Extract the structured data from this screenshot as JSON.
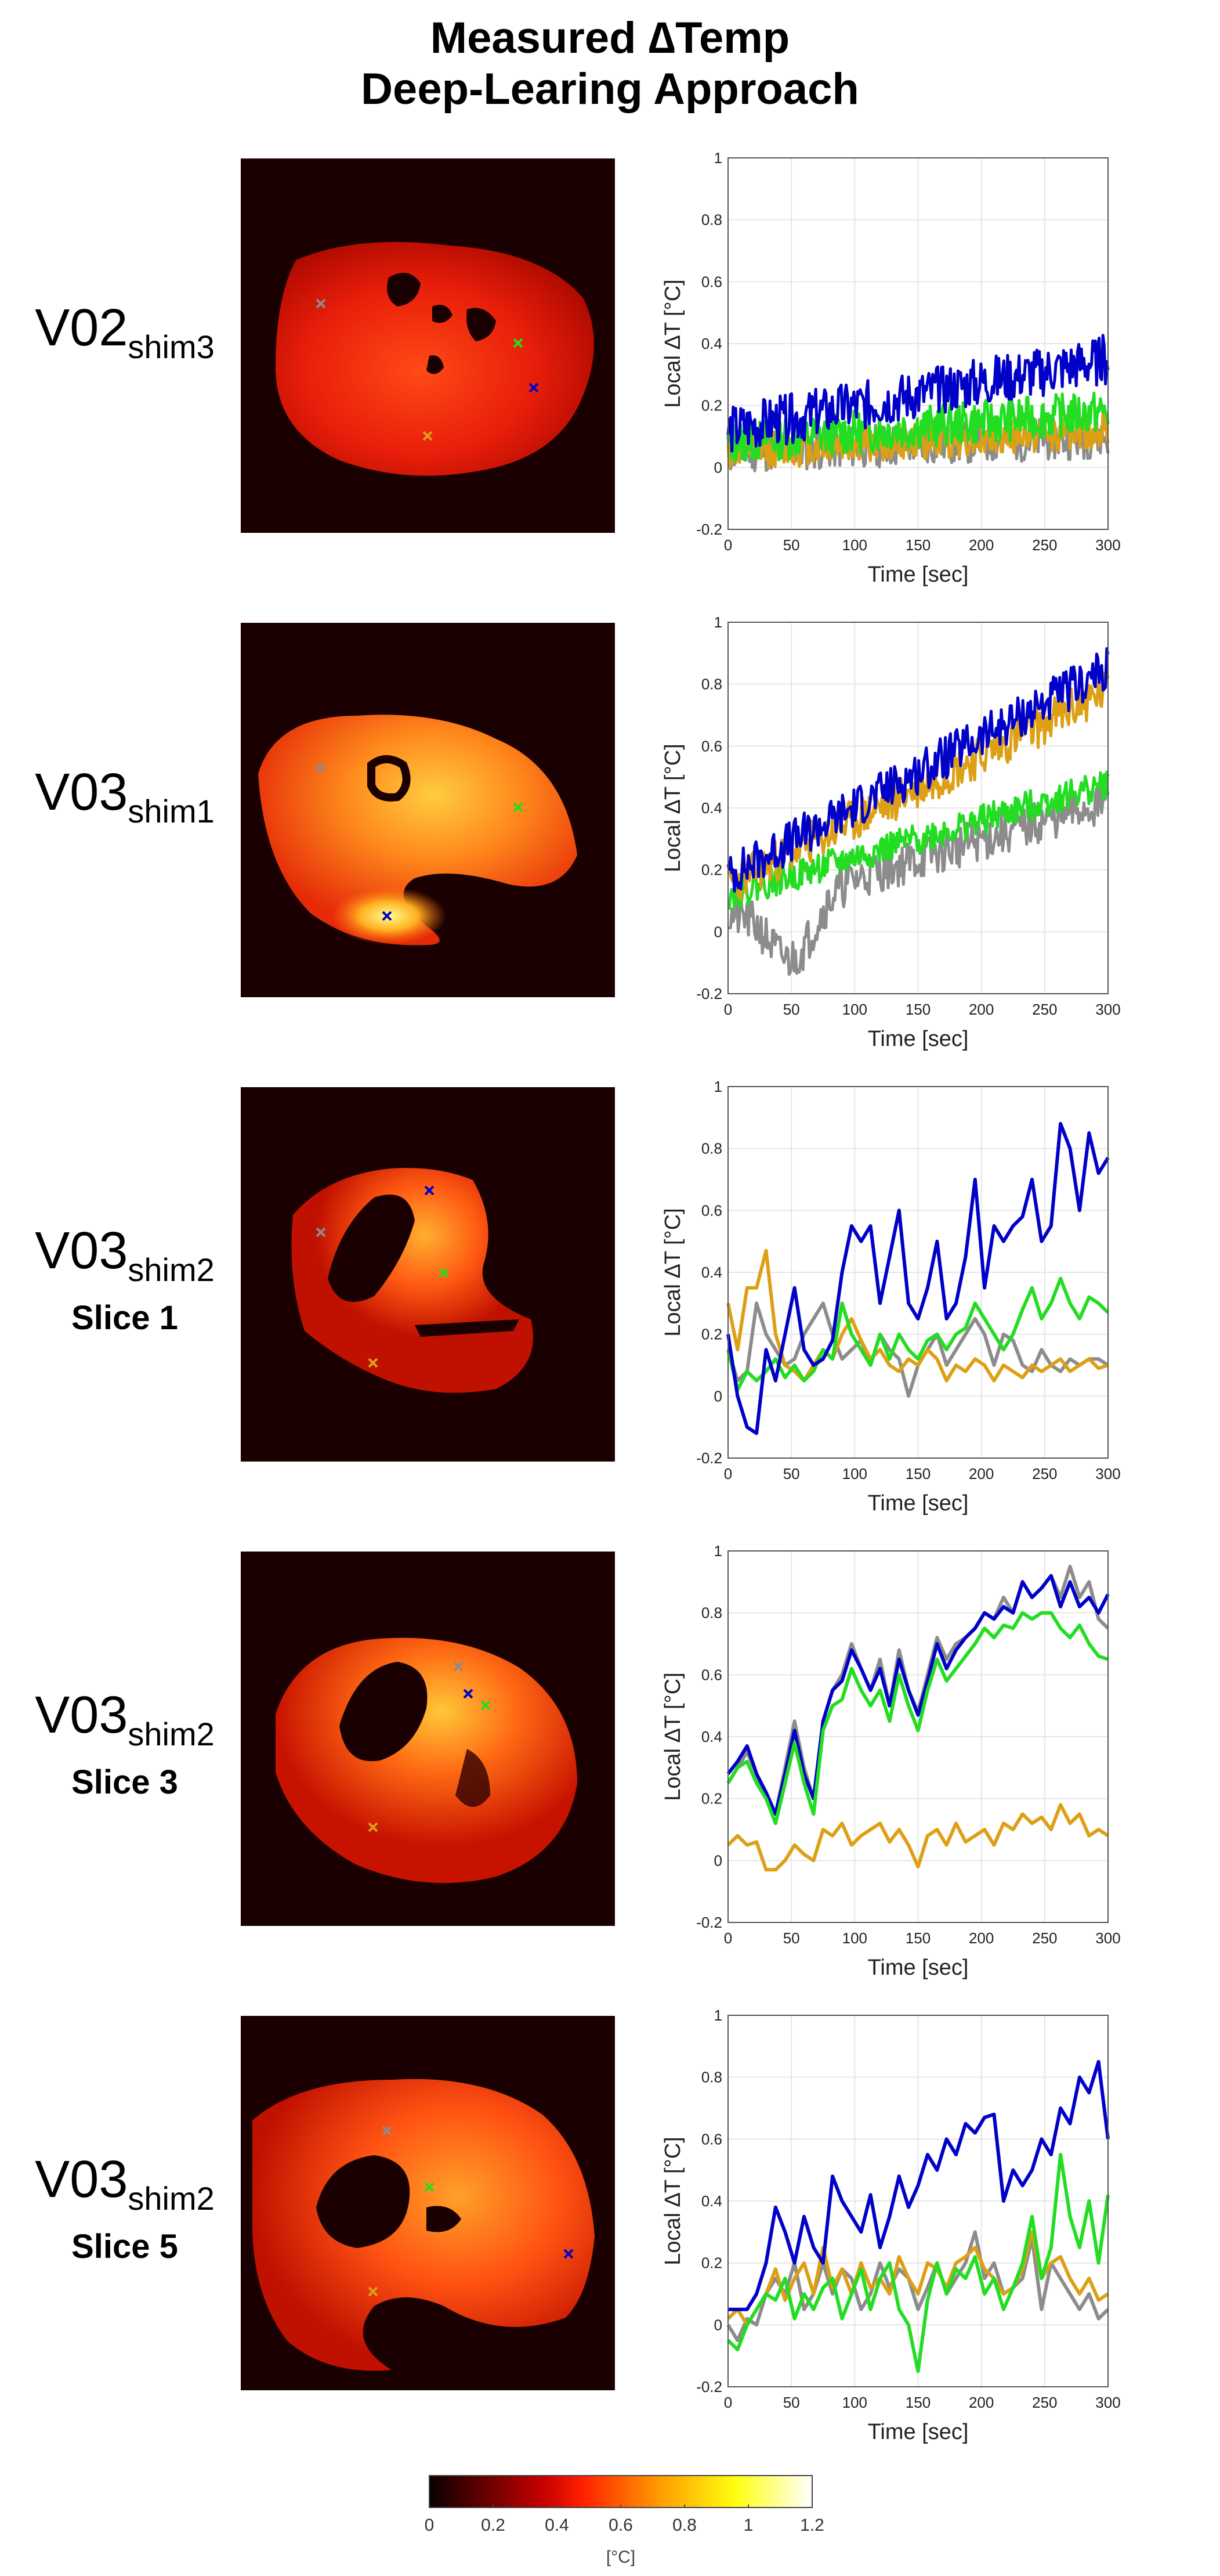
{
  "title": {
    "line1": "Measured ∆Temp",
    "line2": "Deep-Learing Approach"
  },
  "colors": {
    "blue": "#0000c8",
    "green": "#22dd22",
    "gold": "#dda015",
    "gray": "#8c8c8c",
    "bg": "#1a0000"
  },
  "rows": [
    {
      "label_main": "V02",
      "label_sub": "shim3",
      "slice": ""
    },
    {
      "label_main": "V03",
      "label_sub": "shim1",
      "slice": ""
    },
    {
      "label_main": "V03",
      "label_sub": "shim2",
      "slice": "Slice 1"
    },
    {
      "label_main": "V03",
      "label_sub": "shim2",
      "slice": "Slice 3"
    },
    {
      "label_main": "V03",
      "label_sub": "shim2",
      "slice": "Slice 5"
    }
  ],
  "colorbar": {
    "ticks": [
      "0",
      "0.2",
      "0.4",
      "0.6",
      "0.8",
      "1",
      "1.2"
    ],
    "label": "[°C]",
    "range": [
      0,
      1.2
    ]
  },
  "chart_data": [
    {
      "type": "line",
      "row": 0,
      "xlabel": "Time [sec]",
      "ylabel": "Local ∆T [°C]",
      "xlim": [
        0,
        300
      ],
      "ylim": [
        -0.2,
        1
      ],
      "xticks": [
        "0",
        "50",
        "100",
        "150",
        "200",
        "250",
        "300"
      ],
      "yticks": [
        "-0.2",
        "0",
        "0.2",
        "0.4",
        "0.6",
        "0.8",
        "1"
      ],
      "series": [
        {
          "name": "gray",
          "n": 300,
          "seed": 11,
          "start": 0.05,
          "end": 0.1,
          "noise": 0.07
        },
        {
          "name": "gold",
          "n": 300,
          "seed": 12,
          "start": 0.05,
          "end": 0.12,
          "noise": 0.06
        },
        {
          "name": "green",
          "n": 300,
          "seed": 13,
          "start": 0.08,
          "end": 0.18,
          "noise": 0.07
        },
        {
          "name": "blue",
          "n": 300,
          "seed": 14,
          "start": 0.12,
          "end": 0.35,
          "noise": 0.08
        }
      ]
    },
    {
      "type": "line",
      "row": 1,
      "xlabel": "Time [sec]",
      "ylabel": "Local ∆T [°C]",
      "xlim": [
        0,
        300
      ],
      "ylim": [
        -0.2,
        1
      ],
      "xticks": [
        "0",
        "50",
        "100",
        "150",
        "200",
        "250",
        "300"
      ],
      "yticks": [
        "-0.2",
        "0",
        "0.2",
        "0.4",
        "0.6",
        "0.8",
        "1"
      ],
      "series": [
        {
          "name": "gray",
          "n": 300,
          "seed": 21,
          "start": 0.05,
          "end": 0.42,
          "noise": 0.07,
          "dip": [
            50,
            -0.2
          ]
        },
        {
          "name": "green",
          "n": 300,
          "seed": 22,
          "start": 0.12,
          "end": 0.48,
          "noise": 0.05
        },
        {
          "name": "gold",
          "n": 300,
          "seed": 23,
          "start": 0.15,
          "end": 0.78,
          "noise": 0.07
        },
        {
          "name": "blue",
          "n": 300,
          "seed": 24,
          "start": 0.18,
          "end": 0.85,
          "noise": 0.07
        }
      ]
    },
    {
      "type": "line",
      "row": 2,
      "xlabel": "Time [sec]",
      "ylabel": "Local ∆T [°C]",
      "xlim": [
        0,
        300
      ],
      "ylim": [
        -0.2,
        1
      ],
      "xticks": [
        "0",
        "50",
        "100",
        "150",
        "200",
        "250",
        "300"
      ],
      "yticks": [
        "-0.2",
        "0",
        "0.2",
        "0.4",
        "0.6",
        "0.8",
        "1"
      ],
      "series": [
        {
          "name": "gray",
          "values": [
            0.15,
            0.05,
            0.08,
            0.3,
            0.2,
            0.15,
            0.1,
            0.12,
            0.2,
            0.25,
            0.3,
            0.2,
            0.12,
            0.15,
            0.18,
            0.1,
            0.2,
            0.15,
            0.12,
            0.0,
            0.1,
            0.15,
            0.2,
            0.1,
            0.15,
            0.2,
            0.25,
            0.2,
            0.1,
            0.2,
            0.18,
            0.1,
            0.08,
            0.15,
            0.1,
            0.08,
            0.12,
            0.1,
            0.12,
            0.12,
            0.1
          ]
        },
        {
          "name": "gold",
          "values": [
            0.3,
            0.15,
            0.35,
            0.35,
            0.47,
            0.2,
            0.1,
            0.08,
            0.05,
            0.1,
            0.15,
            0.12,
            0.2,
            0.25,
            0.18,
            0.12,
            0.15,
            0.1,
            0.08,
            0.12,
            0.1,
            0.15,
            0.12,
            0.05,
            0.1,
            0.08,
            0.12,
            0.1,
            0.05,
            0.1,
            0.08,
            0.06,
            0.1,
            0.08,
            0.1,
            0.12,
            0.08,
            0.1,
            0.12,
            0.09,
            0.1
          ]
        },
        {
          "name": "green",
          "values": [
            0.15,
            0.02,
            0.08,
            0.05,
            0.08,
            0.12,
            0.06,
            0.1,
            0.05,
            0.08,
            0.15,
            0.12,
            0.3,
            0.2,
            0.15,
            0.1,
            0.2,
            0.12,
            0.2,
            0.15,
            0.12,
            0.18,
            0.2,
            0.15,
            0.2,
            0.22,
            0.3,
            0.25,
            0.2,
            0.15,
            0.2,
            0.28,
            0.35,
            0.25,
            0.3,
            0.38,
            0.3,
            0.25,
            0.32,
            0.3,
            0.27
          ]
        },
        {
          "name": "blue",
          "values": [
            0.2,
            0.0,
            -0.1,
            -0.12,
            0.15,
            0.05,
            0.2,
            0.35,
            0.15,
            0.1,
            0.12,
            0.18,
            0.4,
            0.55,
            0.5,
            0.55,
            0.3,
            0.45,
            0.6,
            0.3,
            0.25,
            0.35,
            0.5,
            0.25,
            0.3,
            0.45,
            0.7,
            0.35,
            0.55,
            0.5,
            0.55,
            0.58,
            0.7,
            0.5,
            0.55,
            0.88,
            0.8,
            0.6,
            0.85,
            0.72,
            0.77
          ]
        }
      ]
    },
    {
      "type": "line",
      "row": 3,
      "xlabel": "Time [sec]",
      "ylabel": "Local ∆T [°C]",
      "xlim": [
        0,
        300
      ],
      "ylim": [
        -0.2,
        1
      ],
      "xticks": [
        "0",
        "50",
        "100",
        "150",
        "200",
        "250",
        "300"
      ],
      "yticks": [
        "-0.2",
        "0",
        "0.2",
        "0.4",
        "0.6",
        "0.8",
        "1"
      ],
      "series": [
        {
          "name": "gold",
          "values": [
            0.05,
            0.08,
            0.05,
            0.06,
            -0.03,
            -0.03,
            0.0,
            0.05,
            0.02,
            0.0,
            0.1,
            0.08,
            0.12,
            0.05,
            0.08,
            0.1,
            0.12,
            0.06,
            0.1,
            0.05,
            -0.02,
            0.08,
            0.1,
            0.05,
            0.12,
            0.06,
            0.08,
            0.1,
            0.05,
            0.12,
            0.1,
            0.15,
            0.12,
            0.14,
            0.1,
            0.18,
            0.12,
            0.15,
            0.08,
            0.1,
            0.08
          ]
        },
        {
          "name": "gray",
          "values": [
            0.25,
            0.3,
            0.35,
            0.28,
            0.2,
            0.15,
            0.3,
            0.45,
            0.3,
            0.2,
            0.45,
            0.55,
            0.6,
            0.7,
            0.62,
            0.55,
            0.65,
            0.5,
            0.68,
            0.55,
            0.48,
            0.6,
            0.72,
            0.65,
            0.7,
            0.72,
            0.75,
            0.8,
            0.78,
            0.85,
            0.8,
            0.9,
            0.85,
            0.88,
            0.92,
            0.85,
            0.95,
            0.85,
            0.9,
            0.78,
            0.75
          ]
        },
        {
          "name": "blue",
          "values": [
            0.28,
            0.32,
            0.37,
            0.28,
            0.22,
            0.15,
            0.28,
            0.42,
            0.28,
            0.2,
            0.45,
            0.55,
            0.58,
            0.68,
            0.62,
            0.55,
            0.62,
            0.5,
            0.65,
            0.55,
            0.47,
            0.58,
            0.7,
            0.62,
            0.68,
            0.72,
            0.75,
            0.8,
            0.78,
            0.82,
            0.8,
            0.9,
            0.85,
            0.88,
            0.92,
            0.82,
            0.9,
            0.82,
            0.85,
            0.8,
            0.86
          ]
        },
        {
          "name": "green",
          "values": [
            0.25,
            0.3,
            0.32,
            0.25,
            0.2,
            0.12,
            0.25,
            0.38,
            0.25,
            0.15,
            0.42,
            0.5,
            0.52,
            0.62,
            0.55,
            0.5,
            0.55,
            0.45,
            0.6,
            0.5,
            0.42,
            0.55,
            0.65,
            0.58,
            0.62,
            0.66,
            0.7,
            0.75,
            0.72,
            0.76,
            0.75,
            0.8,
            0.78,
            0.8,
            0.8,
            0.75,
            0.72,
            0.76,
            0.7,
            0.66,
            0.65
          ]
        }
      ]
    },
    {
      "type": "line",
      "row": 4,
      "xlabel": "Time [sec]",
      "ylabel": "Local ∆T [°C]",
      "xlim": [
        0,
        300
      ],
      "ylim": [
        -0.2,
        1
      ],
      "xticks": [
        "0",
        "50",
        "100",
        "150",
        "200",
        "250",
        "300"
      ],
      "yticks": [
        "-0.2",
        "0",
        "0.2",
        "0.4",
        "0.6",
        "0.8",
        "1"
      ],
      "series": [
        {
          "name": "gray",
          "values": [
            0.0,
            -0.05,
            0.02,
            0.0,
            0.1,
            0.15,
            0.1,
            0.2,
            0.05,
            0.1,
            0.2,
            0.1,
            0.18,
            0.15,
            0.05,
            0.1,
            0.2,
            0.12,
            0.18,
            0.15,
            0.05,
            0.12,
            0.2,
            0.1,
            0.15,
            0.2,
            0.3,
            0.15,
            0.2,
            0.1,
            0.12,
            0.15,
            0.28,
            0.05,
            0.2,
            0.15,
            0.1,
            0.05,
            0.1,
            0.02,
            0.05
          ]
        },
        {
          "name": "gold",
          "values": [
            0.02,
            0.05,
            0.0,
            0.05,
            0.1,
            0.18,
            0.08,
            0.15,
            0.2,
            0.1,
            0.25,
            0.12,
            0.18,
            0.1,
            0.2,
            0.12,
            0.15,
            0.1,
            0.22,
            0.15,
            0.1,
            0.2,
            0.18,
            0.12,
            0.2,
            0.22,
            0.25,
            0.18,
            0.15,
            0.1,
            0.12,
            0.18,
            0.3,
            0.15,
            0.2,
            0.22,
            0.15,
            0.1,
            0.15,
            0.08,
            0.1
          ]
        },
        {
          "name": "green",
          "values": [
            -0.05,
            -0.08,
            0.0,
            0.05,
            0.1,
            0.08,
            0.15,
            0.02,
            0.1,
            0.05,
            0.12,
            0.15,
            0.02,
            0.1,
            0.18,
            0.05,
            0.15,
            0.2,
            0.05,
            0.0,
            -0.15,
            0.08,
            0.2,
            0.1,
            0.18,
            0.15,
            0.22,
            0.1,
            0.15,
            0.05,
            0.12,
            0.2,
            0.35,
            0.15,
            0.25,
            0.55,
            0.35,
            0.25,
            0.4,
            0.2,
            0.42
          ]
        },
        {
          "name": "blue",
          "values": [
            0.05,
            0.05,
            0.05,
            0.1,
            0.2,
            0.38,
            0.3,
            0.2,
            0.35,
            0.25,
            0.2,
            0.48,
            0.4,
            0.35,
            0.3,
            0.42,
            0.25,
            0.35,
            0.48,
            0.38,
            0.45,
            0.55,
            0.5,
            0.6,
            0.55,
            0.65,
            0.62,
            0.67,
            0.68,
            0.4,
            0.5,
            0.45,
            0.5,
            0.6,
            0.55,
            0.7,
            0.65,
            0.8,
            0.75,
            0.85,
            0.6
          ]
        }
      ]
    }
  ],
  "heatmaps": [
    {
      "row": 0,
      "markers": [
        "gray",
        "green",
        "blue",
        "gold"
      ]
    },
    {
      "row": 1,
      "markers": [
        "gray",
        "green",
        "blue"
      ]
    },
    {
      "row": 2,
      "markers": [
        "blue",
        "gray",
        "green",
        "gold"
      ]
    },
    {
      "row": 3,
      "markers": [
        "gray",
        "blue",
        "green",
        "gold"
      ]
    },
    {
      "row": 4,
      "markers": [
        "gray",
        "green",
        "blue",
        "gold"
      ]
    }
  ]
}
